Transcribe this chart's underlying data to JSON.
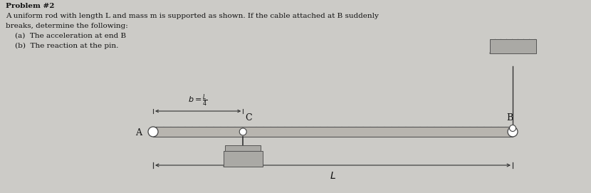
{
  "bg_color": "#cccbc7",
  "text_color": "#111111",
  "title_line1": "Problem #2",
  "problem_line1": "A uniform rod with length L and mass m is supported as shown. If the cable attached at B suddenly",
  "problem_line2": "breaks, determine the following:",
  "problem_line3": "    (a)  The acceleration at end B",
  "problem_line4": "    (b)  The reaction at the pin.",
  "label_A": "A",
  "label_B": "B",
  "label_C": "C",
  "label_L": "L",
  "rod_color": "#b8b5af",
  "rod_edge_color": "#555555",
  "support_color": "#aaa9a5",
  "pin_color": "#ffffff",
  "pin_edge": "#444444",
  "line_color": "#333333"
}
